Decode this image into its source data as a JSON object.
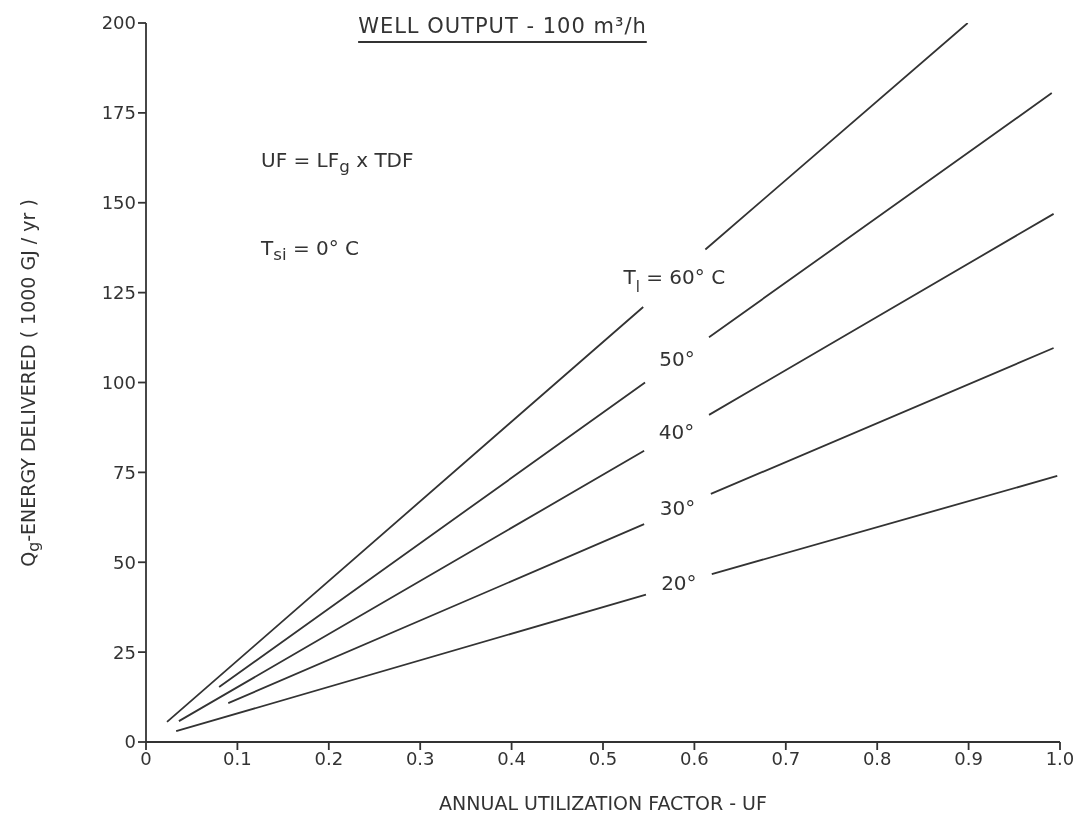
{
  "chart_data": {
    "type": "line",
    "title": "WELL OUTPUT - 100 m³/h",
    "xlabel": "ANNUAL UTILIZATION FACTOR - UF",
    "ylabel": "Q$_{g}$-ENERGY DELIVERED ( 1000 GJ / yr )",
    "annotations": [
      "UF = LF$_{g}$ x TDF",
      "T$_{si}$ = 0° C"
    ],
    "xlim": [
      0,
      1
    ],
    "xticks": [
      {
        "value": 0,
        "label": "0"
      },
      0.1,
      0.2,
      0.3,
      0.4,
      0.5,
      0.6,
      0.7,
      0.8,
      0.9,
      {
        "value": 1,
        "label": "1.0"
      }
    ],
    "ylim": [
      0,
      200
    ],
    "yticks": [
      0,
      25,
      50,
      75,
      100,
      125,
      150,
      175,
      200
    ],
    "marker": "none",
    "line_style": "solid",
    "series": [
      {
        "name": "T$_{l}$ = 60° C",
        "color": "#333333",
        "x": [
          0.023,
          0.544,
          0.578,
          0.612,
          0.899
        ],
        "values": [
          5.6,
          121,
          null,
          137,
          200
        ]
      },
      {
        "name": "50°",
        "color": "#333333",
        "x": [
          0.08,
          0.546,
          0.581,
          0.616,
          0.991
        ],
        "values": [
          15.3,
          100,
          null,
          112.6,
          180.5
        ]
      },
      {
        "name": "40°",
        "color": "#333333",
        "x": [
          0.036,
          0.545,
          0.58,
          0.616,
          0.993
        ],
        "values": [
          5.8,
          81,
          null,
          91,
          146.9
        ]
      },
      {
        "name": "30°",
        "color": "#333333",
        "x": [
          0.09,
          0.545,
          0.58,
          0.618,
          0.993
        ],
        "values": [
          10.8,
          60.6,
          null,
          69,
          109.6
        ]
      },
      {
        "name": "20°",
        "color": "#333333",
        "x": [
          0.033,
          0.547,
          0.583,
          0.619,
          0.997
        ],
        "values": [
          3,
          41,
          null,
          46.7,
          74
        ]
      }
    ]
  }
}
